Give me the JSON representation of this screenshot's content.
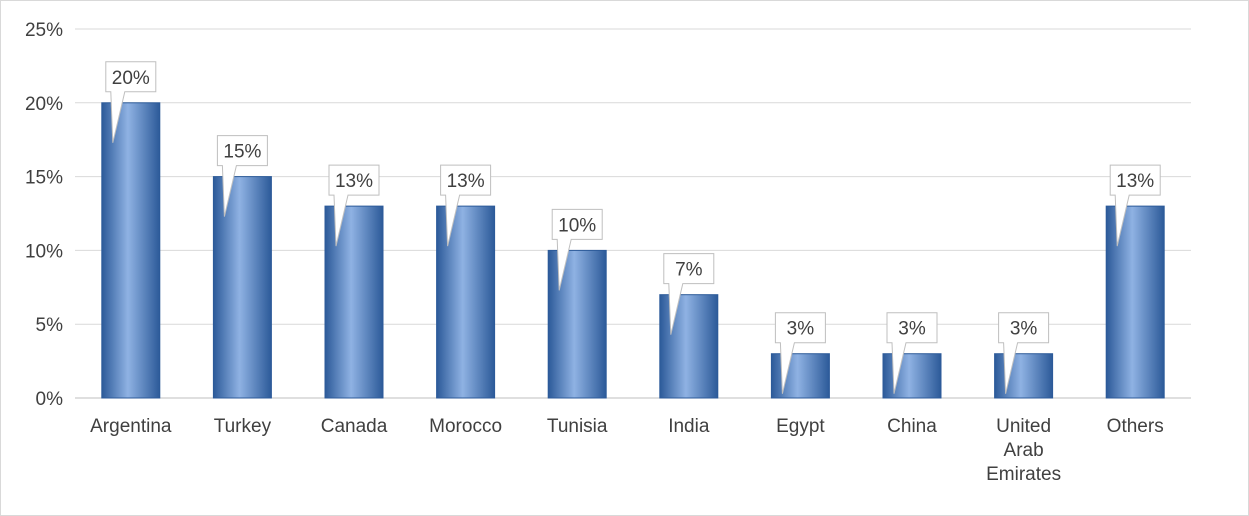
{
  "chart_data": {
    "type": "bar",
    "title": "",
    "xlabel": "",
    "ylabel": "",
    "categories": [
      "Argentina",
      "Turkey",
      "Canada",
      "Morocco",
      "Tunisia",
      "India",
      "Egypt",
      "China",
      "United Arab Emirates",
      "Others"
    ],
    "values": [
      20,
      15,
      13,
      13,
      10,
      7,
      3,
      3,
      3,
      13
    ],
    "data_labels": [
      "20%",
      "15%",
      "13%",
      "13%",
      "10%",
      "7%",
      "3%",
      "3%",
      "3%",
      "13%"
    ],
    "ylim": [
      0,
      25
    ],
    "yticks": [
      0,
      5,
      10,
      15,
      20,
      25
    ],
    "ytick_labels": [
      "0%",
      "5%",
      "10%",
      "15%",
      "20%",
      "25%"
    ],
    "grid": true,
    "legend": "none",
    "bar_color": "#4f81bd",
    "bar_color_dark": "#2c5a99",
    "bar_color_light": "#8fb2e3"
  }
}
